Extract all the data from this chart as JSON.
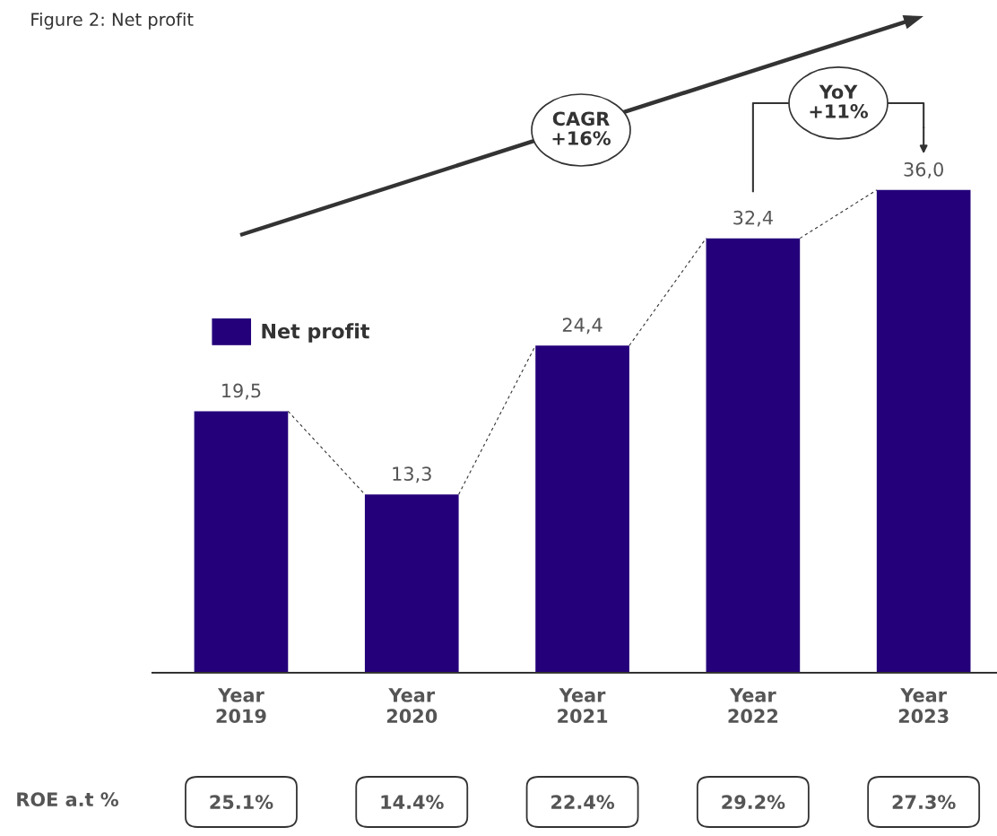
{
  "chart_data": {
    "type": "bar",
    "title": "Figure 2: Net profit",
    "categories": [
      "Year\n2019",
      "Year\n2020",
      "Year\n2021",
      "Year\n2022",
      "Year\n2023"
    ],
    "series": [
      {
        "name": "Net profit",
        "color": "#24007a",
        "values": [
          19.5,
          13.3,
          24.4,
          32.4,
          36.0
        ],
        "value_labels": [
          "19,5",
          "13,3",
          "24,4",
          "32,4",
          "36,0"
        ]
      }
    ],
    "legend": "top left",
    "grid": false,
    "annotations": [
      "CAGR\n+16%",
      "YoY\n+11%",
      "ROE a.t %",
      "25.1%",
      "14.4%",
      "22.4%",
      "29.2%",
      "27.3%"
    ]
  }
}
